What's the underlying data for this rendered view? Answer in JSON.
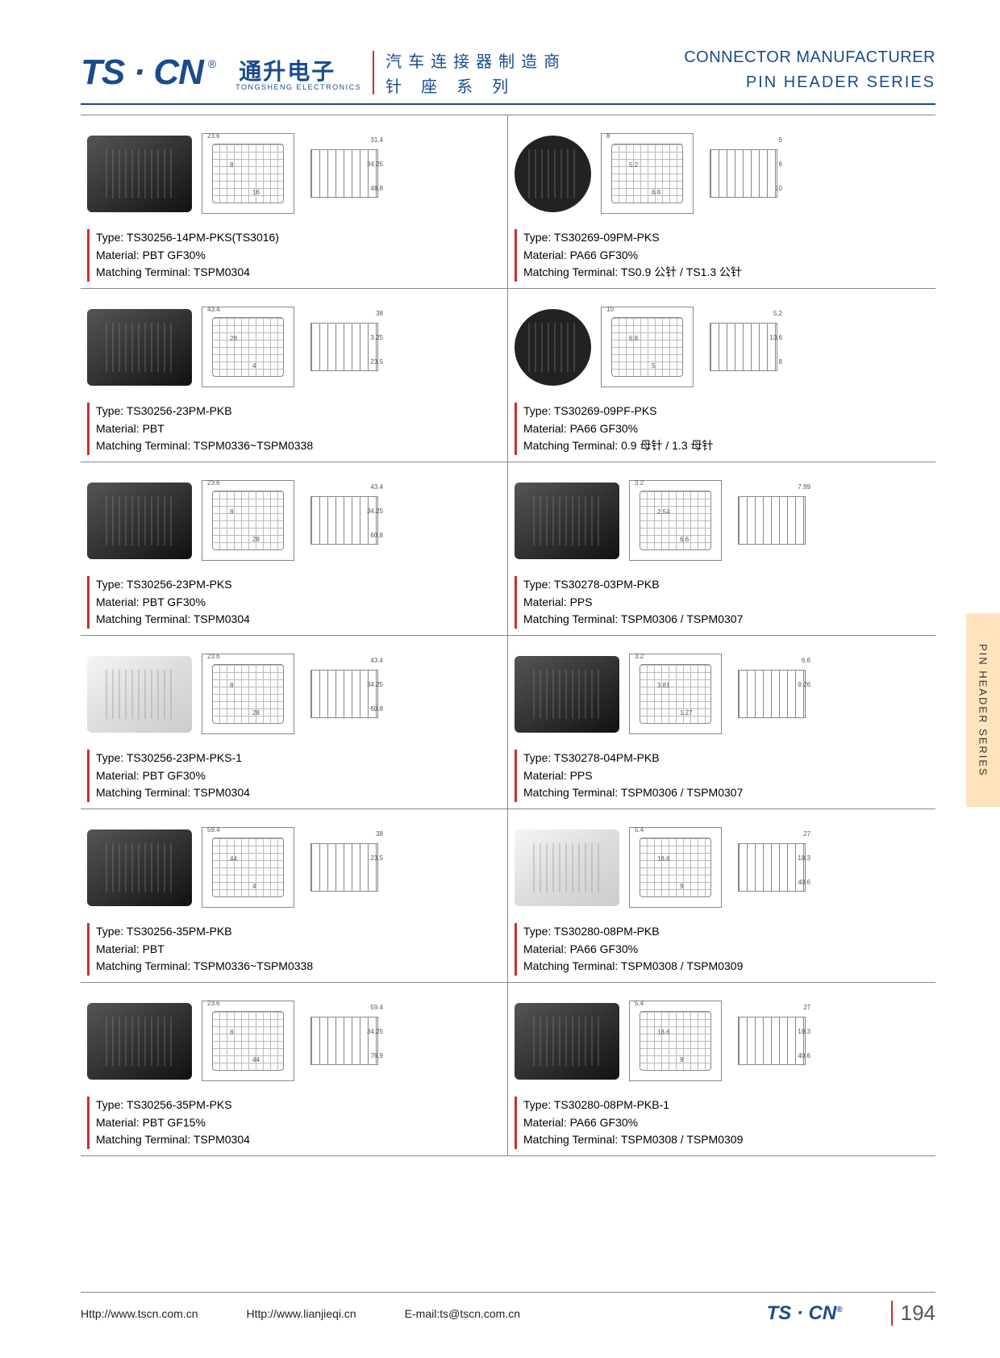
{
  "header": {
    "logo_main": "TS · CN",
    "logo_reg": "®",
    "logo_cn": "通升电子",
    "logo_sub": "TONGSHENG ELECTRONICS",
    "line1_cn": "汽车连接器制造商",
    "line1_en": "CONNECTOR MANUFACTURER",
    "line2_cn": "针座系列",
    "line2_en": "PIN HEADER SERIES"
  },
  "side_tab": "PIN HEADER SERIES",
  "footer": {
    "url1": "Http://www.tscn.com.cn",
    "url2": "Http://www.lianjieqi.cn",
    "email": "E-mail:ts@tscn.com.cn",
    "logo": "TS · CN",
    "reg": "®",
    "page": "194"
  },
  "labels": {
    "type": "Type:",
    "material": "Material:",
    "terminal": "Matching Terminal:"
  },
  "products": [
    {
      "type": "TS30256-14PM-PKS(TS3016)",
      "material": "PBT GF30%",
      "terminal": "TSPM0304",
      "dims": [
        "23.6",
        "8",
        "16",
        "31.4",
        "34.25",
        "48.8"
      ],
      "photo_style": "dark"
    },
    {
      "type": "TS30269-09PM-PKS",
      "material": "PA66 GF30%",
      "terminal": "TS0.9 公针 / TS1.3 公针",
      "dims": [
        "8",
        "5.2",
        "6.8",
        "5",
        "6",
        "10"
      ],
      "photo_style": "round"
    },
    {
      "type": "TS30256-23PM-PKB",
      "material": "PBT",
      "terminal": "TSPM0336~TSPM0338",
      "dims": [
        "43.4",
        "28",
        "4",
        "38",
        "3.25",
        "23.5"
      ],
      "photo_style": "dark"
    },
    {
      "type": "TS30269-09PF-PKS",
      "material": "PA66 GF30%",
      "terminal": "0.9 母针 / 1.3 母针",
      "dims": [
        "10",
        "6.8",
        "5",
        "5.2",
        "13.6",
        "8"
      ],
      "photo_style": "round"
    },
    {
      "type": "TS30256-23PM-PKS",
      "material": "PBT GF30%",
      "terminal": "TSPM0304",
      "dims": [
        "23.6",
        "8",
        "28",
        "43.4",
        "34.25",
        "60.8"
      ],
      "photo_style": "dark"
    },
    {
      "type": "TS30278-03PM-PKB",
      "material": "PPS",
      "terminal": "TSPM0306 / TSPM0307",
      "dims": [
        "3.2",
        "2.54",
        "6.6",
        "7.99"
      ],
      "photo_style": "dark"
    },
    {
      "type": "TS30256-23PM-PKS-1",
      "material": "PBT GF30%",
      "terminal": "TSPM0304",
      "dims": [
        "23.6",
        "8",
        "28",
        "43.4",
        "34.25",
        "60.8"
      ],
      "photo_style": "white"
    },
    {
      "type": "TS30278-04PM-PKB",
      "material": "PPS",
      "terminal": "TSPM0306 / TSPM0307",
      "dims": [
        "3.2",
        "3.81",
        "1.27",
        "6.6",
        "9.26"
      ],
      "photo_style": "dark"
    },
    {
      "type": "TS30256-35PM-PKB",
      "material": "PBT",
      "terminal": "TSPM0336~TSPM0338",
      "dims": [
        "59.4",
        "44",
        "4",
        "38",
        "23.5"
      ],
      "photo_style": "dark"
    },
    {
      "type": "TS30280-08PM-PKB",
      "material": "PA66 GF30%",
      "terminal": "TSPM0308 / TSPM0309",
      "dims": [
        "5.4",
        "18.6",
        "9",
        "27",
        "18.3",
        "40.6"
      ],
      "photo_style": "white"
    },
    {
      "type": "TS30256-35PM-PKS",
      "material": "PBT GF15%",
      "terminal": "TSPM0304",
      "dims": [
        "23.6",
        "8",
        "44",
        "59.4",
        "34.25",
        "76.9"
      ],
      "photo_style": "dark"
    },
    {
      "type": "TS30280-08PM-PKB-1",
      "material": "PA66 GF30%",
      "terminal": "TSPM0308 / TSPM0309",
      "dims": [
        "5.4",
        "18.6",
        "9",
        "27",
        "18.3",
        "40.6"
      ],
      "photo_style": "dark"
    }
  ],
  "colors": {
    "brand_blue": "#1a4b8c",
    "accent_red": "#c9302c",
    "tab_bg": "#ffe3bc",
    "rule": "#888888"
  }
}
